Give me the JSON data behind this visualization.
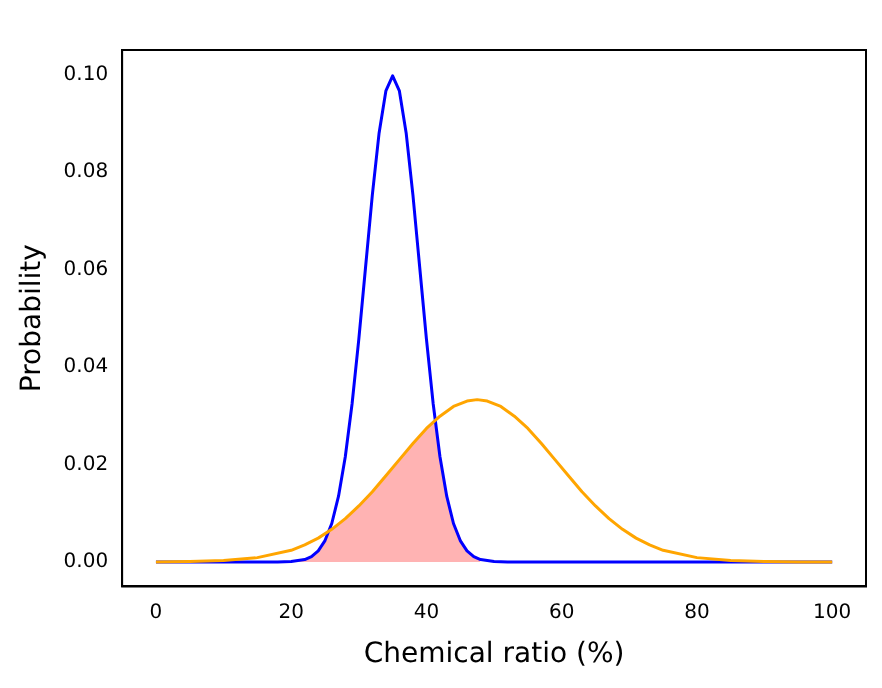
{
  "chart_data": {
    "type": "line",
    "xlabel": "Chemical ratio (%)",
    "ylabel": "Probability",
    "xlim": [
      -5,
      105
    ],
    "xticks": [
      0,
      20,
      40,
      60,
      80,
      100
    ],
    "ylim": [
      -0.005,
      0.105
    ],
    "yticks": [
      {
        "value": 0,
        "label": "0.00"
      },
      {
        "value": 0.02,
        "label": "0.02"
      },
      {
        "value": 0.04,
        "label": "0.04"
      },
      {
        "value": 0.06,
        "label": "0.06"
      },
      {
        "value": 0.08,
        "label": "0.08"
      },
      {
        "value": 0.1,
        "label": "0.10"
      }
    ],
    "grid": false,
    "legend": false,
    "marker": "none",
    "line_style": "solid",
    "series": [
      {
        "type": "area",
        "color": "#ffb3b3",
        "x": [
          20,
          22,
          23,
          24,
          25,
          26,
          28,
          30,
          32,
          34,
          36,
          38,
          40,
          41.3,
          42,
          43,
          44,
          46,
          48
        ],
        "values": [
          0.0001,
          0.0005,
          0.0011,
          0.0023,
          0.0044,
          0.0067,
          0.0089,
          0.0115,
          0.0144,
          0.0177,
          0.021,
          0.0243,
          0.0274,
          0.029,
          0.0216,
          0.0135,
          0.0079,
          0.0023,
          0.0005
        ]
      },
      {
        "color": "#0000ff",
        "x": [
          0,
          10,
          18,
          20,
          22,
          23,
          24,
          25,
          26,
          27,
          28,
          29,
          30,
          31,
          32,
          33,
          34,
          35,
          36,
          37,
          38,
          39,
          40,
          41,
          42,
          43,
          44,
          45,
          46,
          47,
          48,
          50,
          52,
          60,
          80,
          100
        ],
        "values": [
          0,
          0,
          0,
          0.0001,
          0.0005,
          0.0011,
          0.0023,
          0.0044,
          0.0079,
          0.0135,
          0.0216,
          0.0324,
          0.0457,
          0.0605,
          0.0753,
          0.088,
          0.0966,
          0.0997,
          0.0966,
          0.088,
          0.0753,
          0.0605,
          0.0457,
          0.0324,
          0.0216,
          0.0135,
          0.0079,
          0.0044,
          0.0023,
          0.0011,
          0.0005,
          0.0001,
          0,
          0,
          0,
          0
        ]
      },
      {
        "color": "#ffa500",
        "x": [
          0,
          5,
          10,
          15,
          20,
          22,
          24,
          26,
          28,
          30,
          32,
          34,
          36,
          38,
          40,
          42,
          44,
          46,
          47.5,
          49,
          51,
          53,
          55,
          57,
          59,
          61,
          63,
          65,
          67,
          69,
          71,
          73,
          75,
          80,
          85,
          90,
          95,
          100
        ],
        "values": [
          0,
          0.0001,
          0.0003,
          0.0009,
          0.0024,
          0.0035,
          0.0049,
          0.0067,
          0.0089,
          0.0115,
          0.0144,
          0.0177,
          0.021,
          0.0243,
          0.0274,
          0.0299,
          0.0319,
          0.033,
          0.0333,
          0.033,
          0.0319,
          0.0299,
          0.0274,
          0.0243,
          0.021,
          0.0177,
          0.0144,
          0.0115,
          0.0089,
          0.0067,
          0.0049,
          0.0035,
          0.0024,
          0.0009,
          0.0003,
          0.0001,
          0,
          0
        ]
      }
    ]
  }
}
